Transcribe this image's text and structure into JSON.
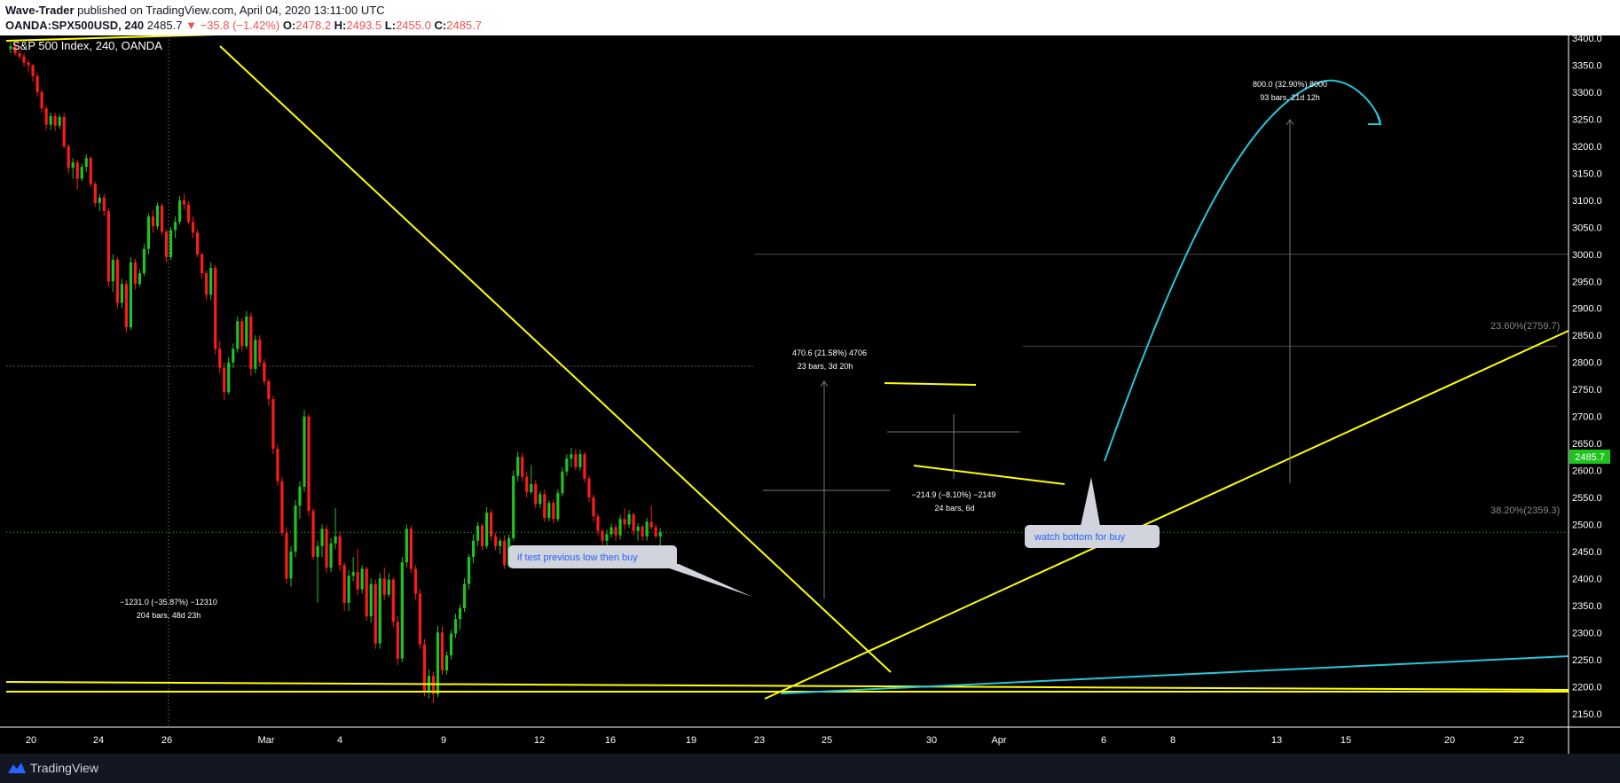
{
  "header": {
    "author": "Wave-Trader",
    "published_text": " published on TradingView.com, April 04, 2020 13:11:00 UTC",
    "symbol": "OANDA:SPX500USD, 240",
    "last": "2485.7",
    "change_arrow": "▼",
    "change": "−35.8 (−1.42%)",
    "open_label": "O:",
    "open": "2478.2",
    "high_label": "H:",
    "high": "2493.5",
    "low_label": "L:",
    "low": "2455.0",
    "close_label": "C:",
    "close": "2485.7"
  },
  "chart_data": {
    "type": "candlestick",
    "title": "S&P 500 Index, 240, OANDA",
    "x_ticks": [
      "20",
      "24",
      "26",
      "Mar",
      "4",
      "9",
      "12",
      "16",
      "19",
      "23",
      "25",
      "30",
      "Apr",
      "6",
      "8",
      "13",
      "15",
      "20",
      "22"
    ],
    "y_ticks": [
      2150,
      2200,
      2250,
      2300,
      2350,
      2400,
      2450,
      2500,
      2550,
      2600,
      2650,
      2700,
      2750,
      2800,
      2850,
      2900,
      2950,
      3000,
      3050,
      3100,
      3150,
      3200,
      3250,
      3300,
      3350,
      3400
    ],
    "ylim": [
      2125,
      3405
    ],
    "grid": false,
    "last_price": 2485.7,
    "last_price_label": "2485.7",
    "candles_ohlc": [
      [
        3380,
        3392,
        3372,
        3385
      ],
      [
        3385,
        3390,
        3368,
        3372
      ],
      [
        3372,
        3380,
        3360,
        3366
      ],
      [
        3366,
        3372,
        3348,
        3355
      ],
      [
        3355,
        3360,
        3338,
        3350
      ],
      [
        3350,
        3352,
        3320,
        3330
      ],
      [
        3330,
        3336,
        3292,
        3300
      ],
      [
        3300,
        3305,
        3262,
        3270
      ],
      [
        3270,
        3275,
        3230,
        3240
      ],
      [
        3240,
        3262,
        3230,
        3256
      ],
      [
        3256,
        3262,
        3228,
        3238
      ],
      [
        3238,
        3260,
        3232,
        3254
      ],
      [
        3254,
        3262,
        3196,
        3200
      ],
      [
        3200,
        3205,
        3150,
        3160
      ],
      [
        3160,
        3178,
        3140,
        3170
      ],
      [
        3170,
        3175,
        3120,
        3140
      ],
      [
        3140,
        3168,
        3135,
        3162
      ],
      [
        3162,
        3185,
        3152,
        3178
      ],
      [
        3178,
        3182,
        3124,
        3130
      ],
      [
        3130,
        3134,
        3088,
        3095
      ],
      [
        3095,
        3112,
        3080,
        3105
      ],
      [
        3105,
        3112,
        3070,
        3080
      ],
      [
        3080,
        3085,
        2940,
        2950
      ],
      [
        2950,
        3000,
        2930,
        2990
      ],
      [
        2990,
        2995,
        2900,
        2910
      ],
      [
        2910,
        2955,
        2900,
        2945
      ],
      [
        2945,
        2952,
        2855,
        2865
      ],
      [
        2865,
        2995,
        2860,
        2985
      ],
      [
        2985,
        2992,
        2935,
        2945
      ],
      [
        2945,
        2972,
        2940,
        2965
      ],
      [
        2965,
        3020,
        2960,
        3010
      ],
      [
        3010,
        3075,
        3000,
        3070
      ],
      [
        3070,
        3082,
        3040,
        3052
      ],
      [
        3052,
        3096,
        3046,
        3090
      ],
      [
        3090,
        3094,
        3036,
        3042
      ],
      [
        3042,
        3046,
        2985,
        2995
      ],
      [
        2995,
        3050,
        2990,
        3045
      ],
      [
        3045,
        3070,
        3030,
        3060
      ],
      [
        3060,
        3108,
        3055,
        3100
      ],
      [
        3100,
        3112,
        3082,
        3092
      ],
      [
        3092,
        3098,
        3055,
        3060
      ],
      [
        3060,
        3070,
        3030,
        3040
      ],
      [
        3040,
        3046,
        2995,
        3000
      ],
      [
        3000,
        3004,
        2955,
        2965
      ],
      [
        2965,
        2970,
        2915,
        2925
      ],
      [
        2925,
        2985,
        2915,
        2975
      ],
      [
        2975,
        2980,
        2815,
        2825
      ],
      [
        2825,
        2840,
        2780,
        2790
      ],
      [
        2790,
        2800,
        2730,
        2745
      ],
      [
        2745,
        2810,
        2740,
        2800
      ],
      [
        2800,
        2835,
        2790,
        2825
      ],
      [
        2825,
        2885,
        2818,
        2876
      ],
      [
        2876,
        2882,
        2820,
        2830
      ],
      [
        2830,
        2895,
        2825,
        2885
      ],
      [
        2885,
        2892,
        2775,
        2788
      ],
      [
        2788,
        2850,
        2780,
        2842
      ],
      [
        2842,
        2850,
        2792,
        2800
      ],
      [
        2800,
        2806,
        2758,
        2765
      ],
      [
        2765,
        2770,
        2720,
        2732
      ],
      [
        2732,
        2738,
        2630,
        2640
      ],
      [
        2640,
        2648,
        2572,
        2580
      ],
      [
        2580,
        2588,
        2478,
        2485
      ],
      [
        2485,
        2495,
        2390,
        2400
      ],
      [
        2400,
        2460,
        2385,
        2450
      ],
      [
        2450,
        2545,
        2440,
        2535
      ],
      [
        2535,
        2580,
        2510,
        2570
      ],
      [
        2570,
        2712,
        2560,
        2700
      ],
      [
        2700,
        2705,
        2515,
        2525
      ],
      [
        2525,
        2530,
        2435,
        2440
      ],
      [
        2440,
        2470,
        2355,
        2460
      ],
      [
        2460,
        2500,
        2440,
        2492
      ],
      [
        2492,
        2498,
        2410,
        2420
      ],
      [
        2420,
        2475,
        2412,
        2465
      ],
      [
        2465,
        2530,
        2455,
        2478
      ],
      [
        2478,
        2488,
        2415,
        2425
      ],
      [
        2425,
        2430,
        2340,
        2355
      ],
      [
        2355,
        2415,
        2340,
        2405
      ],
      [
        2405,
        2440,
        2395,
        2412
      ],
      [
        2412,
        2455,
        2370,
        2380
      ],
      [
        2380,
        2425,
        2372,
        2418
      ],
      [
        2418,
        2422,
        2322,
        2330
      ],
      [
        2330,
        2400,
        2318,
        2390
      ],
      [
        2390,
        2398,
        2270,
        2280
      ],
      [
        2280,
        2410,
        2270,
        2400
      ],
      [
        2400,
        2420,
        2360,
        2370
      ],
      [
        2370,
        2410,
        2365,
        2398
      ],
      [
        2398,
        2402,
        2310,
        2320
      ],
      [
        2320,
        2330,
        2240,
        2252
      ],
      [
        2252,
        2440,
        2245,
        2430
      ],
      [
        2430,
        2500,
        2420,
        2492
      ],
      [
        2492,
        2498,
        2410,
        2418
      ],
      [
        2418,
        2425,
        2360,
        2372
      ],
      [
        2372,
        2380,
        2270,
        2278
      ],
      [
        2278,
        2288,
        2182,
        2190
      ],
      [
        2190,
        2232,
        2178,
        2220
      ],
      [
        2220,
        2228,
        2170,
        2186
      ],
      [
        2186,
        2312,
        2180,
        2300
      ],
      [
        2300,
        2312,
        2222,
        2230
      ],
      [
        2230,
        2265,
        2222,
        2258
      ],
      [
        2258,
        2305,
        2250,
        2298
      ],
      [
        2298,
        2335,
        2290,
        2325
      ],
      [
        2325,
        2352,
        2305,
        2345
      ],
      [
        2345,
        2400,
        2338,
        2390
      ],
      [
        2390,
        2445,
        2380,
        2440
      ],
      [
        2440,
        2482,
        2428,
        2470
      ],
      [
        2470,
        2505,
        2460,
        2498
      ],
      [
        2498,
        2502,
        2452,
        2460
      ],
      [
        2460,
        2532,
        2455,
        2522
      ],
      [
        2522,
        2528,
        2470,
        2478
      ],
      [
        2478,
        2485,
        2452,
        2460
      ],
      [
        2460,
        2475,
        2445,
        2470
      ],
      [
        2470,
        2480,
        2418,
        2425
      ],
      [
        2425,
        2482,
        2420,
        2475
      ],
      [
        2475,
        2600,
        2470,
        2590
      ],
      [
        2590,
        2635,
        2580,
        2625
      ],
      [
        2625,
        2632,
        2580,
        2588
      ],
      [
        2588,
        2598,
        2550,
        2560
      ],
      [
        2560,
        2610,
        2555,
        2575
      ],
      [
        2575,
        2582,
        2530,
        2538
      ],
      [
        2538,
        2562,
        2530,
        2556
      ],
      [
        2556,
        2565,
        2505,
        2512
      ],
      [
        2512,
        2545,
        2505,
        2540
      ],
      [
        2540,
        2546,
        2502,
        2510
      ],
      [
        2510,
        2565,
        2505,
        2558
      ],
      [
        2558,
        2606,
        2552,
        2598
      ],
      [
        2598,
        2630,
        2590,
        2622
      ],
      [
        2622,
        2642,
        2606,
        2630
      ],
      [
        2630,
        2640,
        2600,
        2606
      ],
      [
        2606,
        2638,
        2600,
        2630
      ],
      [
        2630,
        2634,
        2578,
        2585
      ],
      [
        2585,
        2590,
        2542,
        2550
      ],
      [
        2550,
        2555,
        2505,
        2515
      ],
      [
        2515,
        2520,
        2480,
        2488
      ],
      [
        2488,
        2492,
        2462,
        2470
      ],
      [
        2470,
        2490,
        2455,
        2482
      ],
      [
        2482,
        2502,
        2475,
        2495
      ],
      [
        2495,
        2500,
        2470,
        2480
      ],
      [
        2480,
        2518,
        2472,
        2510
      ],
      [
        2510,
        2530,
        2490,
        2500
      ],
      [
        2500,
        2526,
        2494,
        2519
      ],
      [
        2519,
        2522,
        2480,
        2488
      ],
      [
        2488,
        2502,
        2470,
        2496
      ],
      [
        2496,
        2500,
        2470,
        2478
      ],
      [
        2478,
        2512,
        2470,
        2505
      ],
      [
        2505,
        2535,
        2490,
        2495
      ],
      [
        2495,
        2500,
        2475,
        2478
      ],
      [
        2478,
        2493,
        2455,
        2485.7
      ]
    ],
    "annotations": {
      "measure_up": {
        "line1": "470.6 (21.58%) 4706",
        "line2": "23 bars, 3d 20h"
      },
      "measure_down": {
        "line1": "−214.9 (−8.10%) −2149",
        "line2": "24 bars, 6d"
      },
      "measure_big_down": {
        "line1": "−1231.0 (−35.87%) −12310",
        "line2": "204 bars, 48d 23h"
      },
      "measure_target": {
        "line1": "800.0 (32.90%) 8000",
        "line2": "93 bars, 21d 12h"
      },
      "fib_236": "23.60%(2759.7)",
      "fib_382": "38.20%(2359.3)",
      "callout_left": "if test previous low then buy",
      "callout_right": "watch bottom for buy"
    },
    "colors": {
      "up": "#26a69a",
      "up_bright": "#1ec31e",
      "down": "#ff1a1a",
      "trendline": "#ffff00",
      "projection": "#26c6da",
      "last_price_bg": "#1ec31e"
    }
  },
  "footer": {
    "brand": "TradingView"
  }
}
